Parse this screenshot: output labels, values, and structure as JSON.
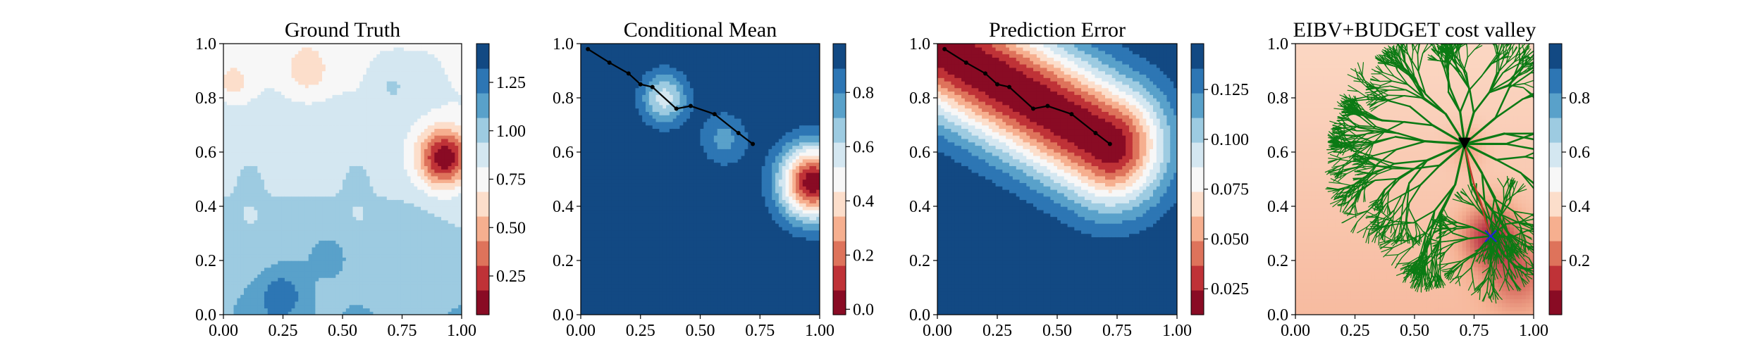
{
  "chart_data": [
    {
      "type": "heatmap",
      "title": "Ground Truth",
      "xlim": [
        0,
        1
      ],
      "ylim": [
        0,
        1
      ],
      "xticks": [
        "0.00",
        "0.25",
        "0.50",
        "0.75",
        "1.00"
      ],
      "yticks": [
        "0.0",
        "0.2",
        "0.4",
        "0.6",
        "0.8",
        "1.0"
      ],
      "colormap": "RdBu",
      "colorbar": {
        "ticks": [
          "0.25",
          "0.50",
          "0.75",
          "1.00",
          "1.25"
        ],
        "tick_values": [
          0.25,
          0.5,
          0.75,
          1.0,
          1.25
        ],
        "range": [
          0.05,
          1.45
        ]
      },
      "field_features": [
        {
          "x": 0.92,
          "y": 0.58,
          "value": 0.1
        },
        {
          "x": 0.35,
          "y": 0.88,
          "value": 0.68
        },
        {
          "x": 0.05,
          "y": 0.85,
          "value": 0.75
        },
        {
          "x": 0.7,
          "y": 0.85,
          "value": 1.05
        },
        {
          "x": 0.3,
          "y": 0.6,
          "value": 1.0
        },
        {
          "x": 0.25,
          "y": 0.08,
          "value": 1.45
        },
        {
          "x": 0.45,
          "y": 0.22,
          "value": 1.35
        },
        {
          "x": 0.65,
          "y": 0.22,
          "value": 1.2
        }
      ]
    },
    {
      "type": "heatmap",
      "title": "Conditional Mean",
      "xlim": [
        0,
        1
      ],
      "ylim": [
        0,
        1
      ],
      "xticks": [
        "0.00",
        "0.25",
        "0.50",
        "0.75",
        "1.00"
      ],
      "yticks": [
        "0.0",
        "0.2",
        "0.4",
        "0.6",
        "0.8",
        "1.0"
      ],
      "colormap": "RdBu",
      "colorbar": {
        "ticks": [
          "0.0",
          "0.2",
          "0.4",
          "0.6",
          "0.8"
        ],
        "tick_values": [
          0.0,
          0.2,
          0.4,
          0.6,
          0.8
        ],
        "range": [
          -0.02,
          0.98
        ]
      },
      "path": {
        "x": [
          0.03,
          0.12,
          0.2,
          0.25,
          0.3,
          0.4,
          0.46,
          0.56,
          0.66,
          0.72
        ],
        "y": [
          0.98,
          0.93,
          0.89,
          0.85,
          0.84,
          0.76,
          0.77,
          0.74,
          0.67,
          0.63
        ]
      },
      "field_features": [
        {
          "x": 0.97,
          "y": 0.5,
          "value": 0.0
        },
        {
          "x": 0.35,
          "y": 0.8,
          "value": 0.56
        }
      ]
    },
    {
      "type": "heatmap",
      "title": "Prediction Error",
      "xlim": [
        0,
        1
      ],
      "ylim": [
        0,
        1
      ],
      "xticks": [
        "0.00",
        "0.25",
        "0.50",
        "0.75",
        "1.00"
      ],
      "yticks": [
        "0.0",
        "0.2",
        "0.4",
        "0.6",
        "0.8",
        "1.0"
      ],
      "colormap": "RdBu",
      "colorbar": {
        "ticks": [
          "0.025",
          "0.050",
          "0.075",
          "0.100",
          "0.125"
        ],
        "tick_values": [
          0.025,
          0.05,
          0.075,
          0.1,
          0.125
        ],
        "range": [
          0.012,
          0.148
        ]
      },
      "path": {
        "x": [
          0.03,
          0.12,
          0.2,
          0.25,
          0.3,
          0.4,
          0.46,
          0.56,
          0.66,
          0.72
        ],
        "y": [
          0.98,
          0.93,
          0.89,
          0.85,
          0.84,
          0.76,
          0.77,
          0.74,
          0.67,
          0.63
        ]
      }
    },
    {
      "type": "heatmap",
      "title": "EIBV+BUDGET cost valley",
      "xlim": [
        0,
        1
      ],
      "ylim": [
        0,
        1
      ],
      "xticks": [
        "0.00",
        "0.25",
        "0.50",
        "0.75",
        "1.00"
      ],
      "yticks": [
        "0.0",
        "0.2",
        "0.4",
        "0.6",
        "0.8",
        "1.0"
      ],
      "colormap": "RdBu",
      "colorbar": {
        "ticks": [
          "0.2",
          "0.4",
          "0.6",
          "0.8"
        ],
        "tick_values": [
          0.2,
          0.4,
          0.6,
          0.8
        ],
        "range": [
          0.0,
          1.0
        ]
      },
      "tree_root": {
        "x": 0.71,
        "y": 0.63
      },
      "target": {
        "x": 0.82,
        "y": 0.29
      },
      "selected_path": {
        "x": [
          0.71,
          0.73,
          0.75,
          0.78,
          0.8,
          0.82
        ],
        "y": [
          0.63,
          0.55,
          0.48,
          0.41,
          0.34,
          0.29
        ]
      },
      "colors": {
        "tree": "#0b7a14",
        "path": "#c0392b",
        "target": "#2020dd"
      }
    }
  ]
}
